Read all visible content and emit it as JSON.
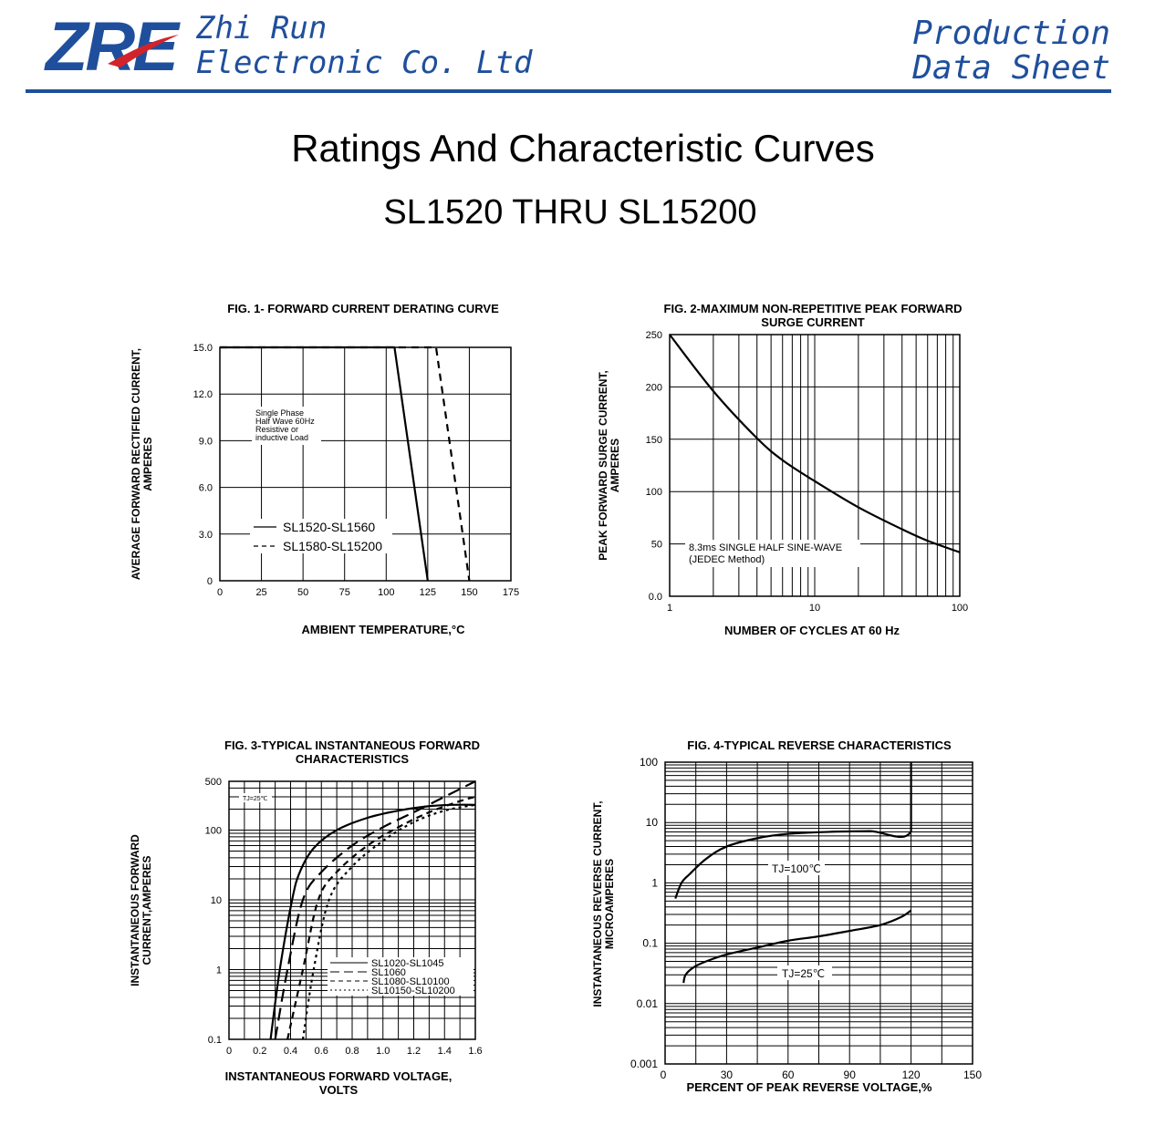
{
  "header": {
    "logo_text": "ZRE",
    "company_line1": "Zhi Run",
    "company_line2": "Electronic Co. Ltd",
    "doc_type_line1": "Production",
    "doc_type_line2": "Data Sheet",
    "brand_color": "#1f4f9c",
    "logo_swoosh_color": "#d2232a"
  },
  "page": {
    "title": "Ratings And  Characteristic Curves",
    "subtitle": "SL1520 THRU SL15200"
  },
  "chart_data": [
    {
      "type": "line",
      "title": "FIG. 1- FORWARD CURRENT DERATING CURVE",
      "xlabel": "AMBIENT TEMPERATURE,°C",
      "ylabel": [
        "AVERAGE FORWARD RECTIFIED CURRENT,",
        "AMPERES"
      ],
      "xlim": [
        0,
        175
      ],
      "ylim": [
        0,
        15
      ],
      "x_ticks": [
        0,
        25,
        50,
        75,
        100,
        125,
        150,
        175
      ],
      "y_ticks": [
        0,
        3,
        6,
        9,
        12,
        15
      ],
      "y_tick_labels": [
        "0",
        "3.0",
        "6.0",
        "9.0",
        "12.0",
        "15.0"
      ],
      "grid": true,
      "annotation": [
        "Single Phase",
        "Half Wave 60Hz",
        "Resistive or",
        "inductive Load"
      ],
      "series": [
        {
          "name": "SL1520-SL1560",
          "style": "solid",
          "x": [
            0,
            105,
            125
          ],
          "y": [
            15,
            15,
            0
          ]
        },
        {
          "name": "SL1580-SL15200",
          "style": "dashed",
          "x": [
            0,
            130,
            150
          ],
          "y": [
            15,
            15,
            0
          ]
        }
      ],
      "legend": "bottom-left"
    },
    {
      "type": "line",
      "title": [
        "FIG. 2-MAXIMUM NON-REPETITIVE PEAK FORWARD",
        "SURGE CURRENT"
      ],
      "xlabel": "NUMBER OF CYCLES AT 60 Hz",
      "ylabel": [
        "PEAK  FORWARD SURGE CURRENT,",
        "AMPERES"
      ],
      "x_scale": "log",
      "xlim": [
        1,
        100
      ],
      "ylim": [
        0,
        250
      ],
      "x_ticks": [
        1,
        10,
        100
      ],
      "y_ticks": [
        0,
        50,
        100,
        150,
        200,
        250
      ],
      "y_tick_labels": [
        "0.0",
        "50",
        "100",
        "150",
        "200",
        "250"
      ],
      "grid": true,
      "annotation": [
        "8.3ms SINGLE HALF SINE-WAVE",
        "(JEDEC Method)"
      ],
      "series": [
        {
          "style": "solid",
          "x": [
            1,
            2,
            4,
            6,
            10,
            20,
            40,
            60,
            100
          ],
          "y": [
            250,
            196,
            151,
            130,
            110,
            85,
            64,
            53,
            42
          ]
        }
      ]
    },
    {
      "type": "line",
      "title": [
        "FIG. 3-TYPICAL INSTANTANEOUS FORWARD",
        "CHARACTERISTICS"
      ],
      "xlabel": [
        "INSTANTANEOUS FORWARD VOLTAGE,",
        "VOLTS"
      ],
      "ylabel": [
        "INSTANTANEOUS FORWARD",
        "CURRENT,AMPERES"
      ],
      "y_scale": "log",
      "xlim": [
        0,
        1.6
      ],
      "ylim": [
        0.1,
        500
      ],
      "x_ticks": [
        0,
        0.2,
        0.4,
        0.6,
        0.8,
        1.0,
        1.2,
        1.4,
        1.6
      ],
      "x_tick_labels": [
        "0",
        "0.2",
        "0.4",
        "0.6",
        "0.8",
        "1.0",
        "1.2",
        "1.4",
        "1.6"
      ],
      "y_ticks": [
        0.1,
        1,
        10,
        100,
        500
      ],
      "y_tick_labels": [
        "0.1",
        "1",
        "10",
        "100",
        "500"
      ],
      "grid": true,
      "annotation": "TJ=25℃",
      "series": [
        {
          "name": "SL1020-SL1045",
          "style": "solid",
          "x": [
            0.27,
            0.33,
            0.41,
            0.46,
            0.55,
            0.7,
            0.9,
            1.1,
            1.3,
            1.45,
            1.6
          ],
          "y": [
            0.1,
            1,
            10,
            25,
            55,
            100,
            150,
            190,
            220,
            230,
            230
          ]
        },
        {
          "name": "SL1060",
          "style": "long-dash",
          "x": [
            0.3,
            0.38,
            0.48,
            0.6,
            0.8,
            1.0,
            1.2,
            1.4,
            1.6
          ],
          "y": [
            0.1,
            1,
            10,
            25,
            60,
            110,
            180,
            300,
            500
          ]
        },
        {
          "name": "SL1080-SL10100",
          "style": "dash",
          "x": [
            0.38,
            0.48,
            0.58,
            0.7,
            0.9,
            1.1,
            1.3,
            1.5,
            1.6
          ],
          "y": [
            0.1,
            1,
            10,
            25,
            60,
            110,
            180,
            260,
            300
          ]
        },
        {
          "name": "SL10150-SL10200",
          "style": "dot",
          "x": [
            0.48,
            0.55,
            0.65,
            0.8,
            1.0,
            1.2,
            1.4,
            1.6
          ],
          "y": [
            0.1,
            1,
            10,
            30,
            70,
            130,
            190,
            230
          ]
        }
      ],
      "legend": "bottom-right"
    },
    {
      "type": "line",
      "title": "FIG. 4-TYPICAL REVERSE CHARACTERISTICS",
      "xlabel": "PERCENT OF PEAK REVERSE VOLTAGE,%",
      "ylabel": [
        "INSTANTANEOUS REVERSE CURRENT,",
        "MICROAMPERES"
      ],
      "y_scale": "log",
      "xlim": [
        0,
        150
      ],
      "ylim": [
        0.001,
        100
      ],
      "x_ticks": [
        0,
        30,
        60,
        90,
        120,
        150
      ],
      "y_ticks": [
        0.001,
        0.01,
        0.1,
        1,
        10,
        100
      ],
      "y_tick_labels": [
        "0.001",
        "0.01",
        "0.1",
        "1",
        "10",
        "100"
      ],
      "grid": true,
      "series": [
        {
          "name": "TJ=100℃",
          "style": "solid",
          "x": [
            5,
            8,
            12,
            20,
            30,
            45,
            60,
            80,
            100,
            120,
            120
          ],
          "y": [
            0.55,
            1,
            1.4,
            2.5,
            4,
            5.5,
            6.5,
            7,
            7.2,
            7.2,
            150
          ]
        },
        {
          "name": "TJ=25℃",
          "style": "solid",
          "x": [
            9,
            10,
            14,
            20,
            30,
            45,
            60,
            75,
            90,
            105,
            115,
            120
          ],
          "y": [
            0.022,
            0.03,
            0.04,
            0.05,
            0.065,
            0.085,
            0.11,
            0.13,
            0.16,
            0.2,
            0.27,
            0.35
          ]
        }
      ]
    }
  ]
}
